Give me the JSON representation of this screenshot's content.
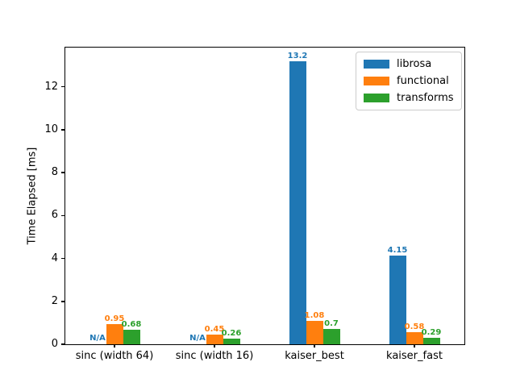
{
  "chart_data": {
    "type": "bar",
    "title": "",
    "xlabel": "",
    "ylabel": "Time Elapsed [ms]",
    "categories": [
      "sinc (width 64)",
      "sinc (width 16)",
      "kaiser_best",
      "kaiser_fast"
    ],
    "series": [
      {
        "name": "librosa",
        "color": "#1f77b4",
        "values": [
          null,
          null,
          13.2,
          4.15
        ],
        "labels": [
          "N/A",
          "N/A",
          "13.2",
          "4.15"
        ]
      },
      {
        "name": "functional",
        "color": "#ff7f0e",
        "values": [
          0.95,
          0.45,
          1.08,
          0.58
        ],
        "labels": [
          "0.95",
          "0.45",
          "1.08",
          "0.58"
        ]
      },
      {
        "name": "transforms",
        "color": "#2ca02c",
        "values": [
          0.68,
          0.26,
          0.7,
          0.29
        ],
        "labels": [
          "0.68",
          "0.26",
          "0.7",
          "0.29"
        ]
      }
    ],
    "yticks": [
      0,
      2,
      4,
      6,
      8,
      10,
      12
    ],
    "ylim": [
      0,
      13.86
    ],
    "grid": false,
    "legend_position": "upper right",
    "missing_value_text": "N/A",
    "axis_color": "#000000",
    "background_color": "#ffffff"
  }
}
